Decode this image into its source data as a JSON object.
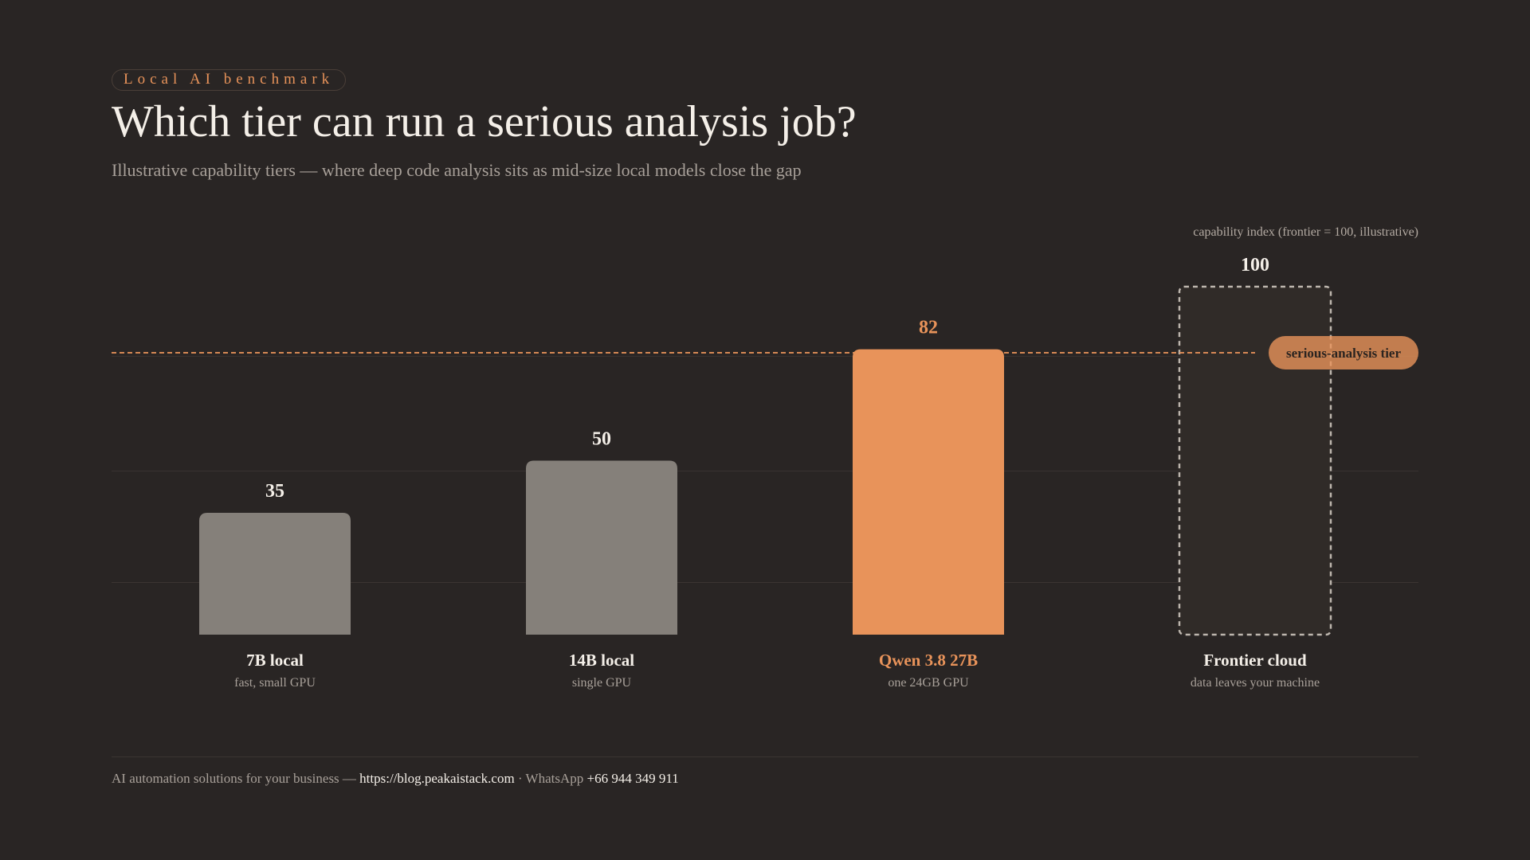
{
  "eyebrow": "Local AI benchmark",
  "title": "Which tier can run a serious analysis job?",
  "subtitle": "Illustrative capability tiers — where deep code analysis sits as mid-size local models close the gap",
  "axis_note": "capability index (frontier = 100, illustrative)",
  "footer": {
    "prefix": "AI automation solutions for your business — ",
    "url": "https://blog.peakaistack.com",
    "sep": " · WhatsApp ",
    "phone": "+66 944 349 911"
  },
  "colors": {
    "background": "#292524",
    "bar_gray": "#85807a",
    "accent": "#e8935a",
    "text_light": "#f4efe8",
    "text_muted": "#a8a099",
    "dashed_outline": "#bdb6ae"
  },
  "chart_data": {
    "type": "bar",
    "ylim": [
      0,
      100
    ],
    "threshold": {
      "value": 81,
      "label": "serious-analysis tier"
    },
    "bars": [
      {
        "category": "7B local",
        "sublabel": "fast, small GPU",
        "value": 35,
        "style": "gray"
      },
      {
        "category": "14B local",
        "sublabel": "single GPU",
        "value": 50,
        "style": "gray"
      },
      {
        "category": "Qwen 3.8 27B",
        "sublabel": "one 24GB GPU",
        "value": 82,
        "style": "accent"
      },
      {
        "category": "Frontier cloud",
        "sublabel": "data leaves your machine",
        "value": 100,
        "style": "dashed"
      }
    ]
  }
}
